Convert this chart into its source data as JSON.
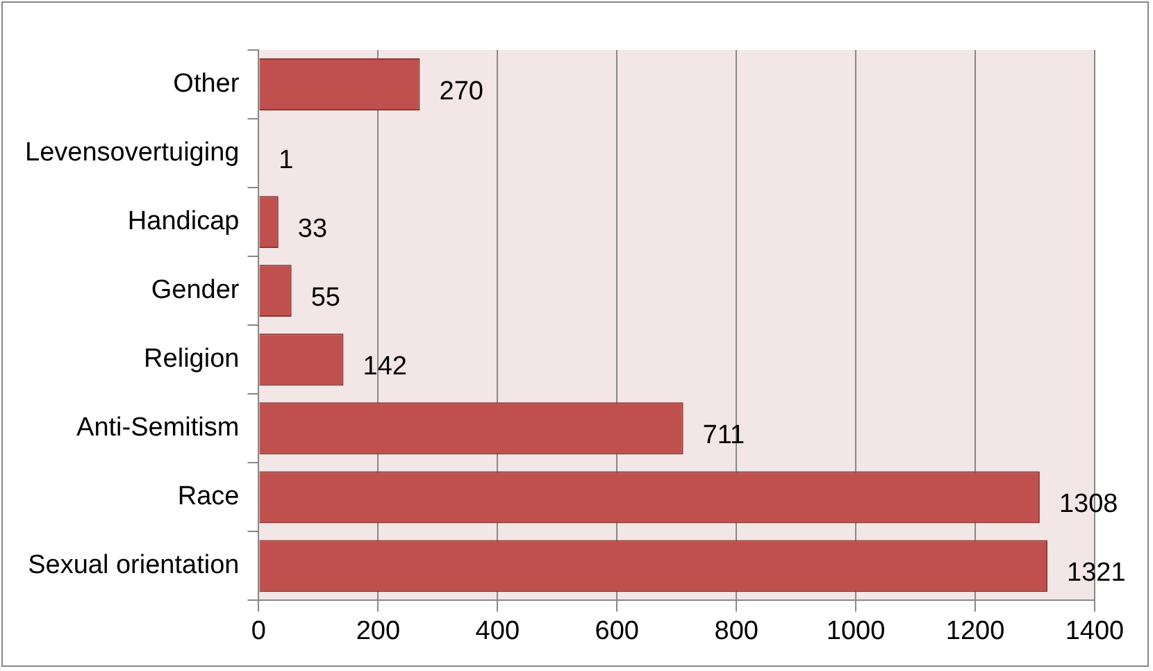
{
  "chart_data": {
    "type": "bar",
    "orientation": "horizontal",
    "categories": [
      "Other",
      "Levensovertuiging",
      "Handicap",
      "Gender",
      "Religion",
      "Anti-Semitism",
      "Race",
      "Sexual orientation"
    ],
    "values": [
      270,
      1,
      33,
      55,
      142,
      711,
      1308,
      1321
    ],
    "color": "#c0504d",
    "xlim": [
      0,
      1400
    ],
    "xticks": [
      0,
      200,
      400,
      600,
      800,
      1000,
      1200,
      1400
    ],
    "grid": "x",
    "data_labels": true,
    "legend": false
  }
}
